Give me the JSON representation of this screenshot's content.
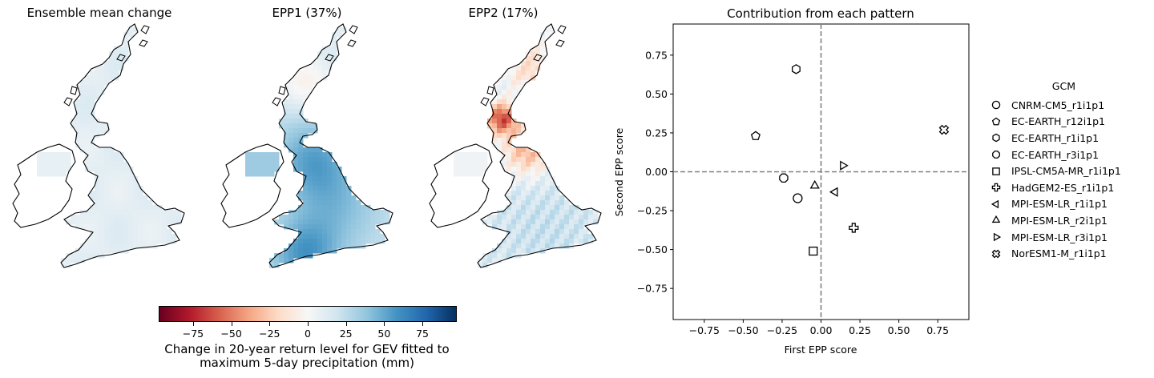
{
  "panels": [
    {
      "title": "Ensemble mean change"
    },
    {
      "title": "EPP1 (37%)"
    },
    {
      "title": "EPP2 (17%)"
    }
  ],
  "colorbar": {
    "ticks": [
      "−75",
      "−50",
      "−25",
      "0",
      "25",
      "50",
      "75"
    ],
    "tick_values": [
      -75,
      -50,
      -25,
      0,
      25,
      50,
      75
    ],
    "range": [
      -97,
      97
    ],
    "label_line1": "Change in 20-year return level for GEV fitted to",
    "label_line2": "maximum 5-day precipitation (mm)",
    "colormap": "RdBu"
  },
  "chart_data": {
    "type": "scatter",
    "title": "Contribution from each pattern",
    "xlabel": "First EPP score",
    "ylabel": "Second EPP score",
    "xlim": [
      -0.95,
      0.95
    ],
    "ylim": [
      -0.95,
      0.95
    ],
    "xticks": [
      -0.75,
      -0.5,
      -0.25,
      0.0,
      0.25,
      0.5,
      0.75
    ],
    "yticks": [
      -0.75,
      -0.5,
      -0.25,
      0.0,
      0.25,
      0.5,
      0.75
    ],
    "xtick_labels": [
      "−0.75",
      "−0.50",
      "−0.25",
      "0.00",
      "0.25",
      "0.50",
      "0.75"
    ],
    "ytick_labels": [
      "−0.75",
      "−0.50",
      "−0.25",
      "0.00",
      "0.25",
      "0.50",
      "0.75"
    ],
    "reference_lines": {
      "x": 0,
      "y": 0,
      "style": "dashed",
      "color": "#808080"
    },
    "legend_title": "GCM",
    "legend_position": "right",
    "series": [
      {
        "name": "CNRM-CM5_r1i1p1",
        "marker": "circle",
        "x": -0.15,
        "y": -0.17
      },
      {
        "name": "EC-EARTH_r12i1p1",
        "marker": "pentagon",
        "x": -0.42,
        "y": 0.23
      },
      {
        "name": "EC-EARTH_r1i1p1",
        "marker": "hexagon",
        "x": -0.16,
        "y": 0.66
      },
      {
        "name": "EC-EARTH_r3i1p1",
        "marker": "octagon",
        "x": -0.24,
        "y": -0.04
      },
      {
        "name": "IPSL-CM5A-MR_r1i1p1",
        "marker": "square",
        "x": -0.05,
        "y": -0.51
      },
      {
        "name": "HadGEM2-ES_r1i1p1",
        "marker": "plus",
        "x": 0.21,
        "y": -0.36
      },
      {
        "name": "MPI-ESM-LR_r1i1p1",
        "marker": "triangle-left",
        "x": 0.09,
        "y": -0.13
      },
      {
        "name": "MPI-ESM-LR_r2i1p1",
        "marker": "triangle-up",
        "x": -0.04,
        "y": -0.09
      },
      {
        "name": "MPI-ESM-LR_r3i1p1",
        "marker": "triangle-right",
        "x": 0.14,
        "y": 0.04
      },
      {
        "name": "NorESM1-M_r1i1p1",
        "marker": "x",
        "x": 0.79,
        "y": 0.27
      }
    ]
  }
}
